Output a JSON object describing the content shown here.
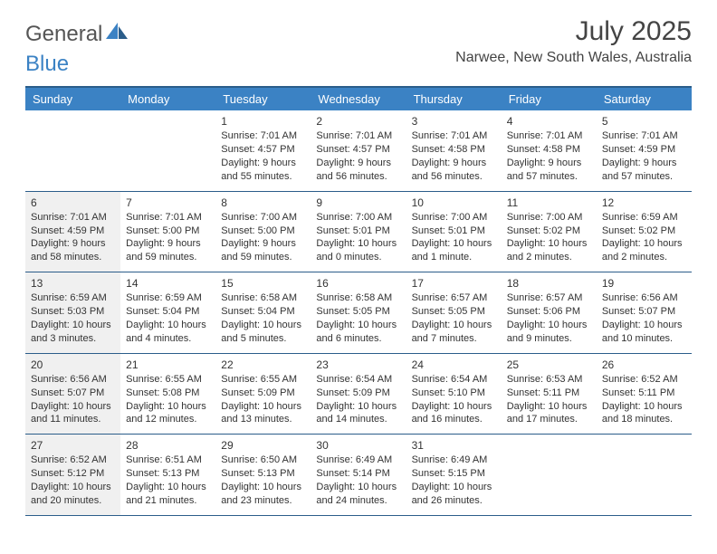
{
  "brand": {
    "part1": "General",
    "part2": "Blue"
  },
  "title": "July 2025",
  "location": "Narwee, New South Wales, Australia",
  "colors": {
    "header_bg": "#3b82c4",
    "border": "#2b5d8a",
    "shade_bg": "#f0f0f0",
    "text": "#333333",
    "header_text": "#ffffff"
  },
  "day_headers": [
    "Sunday",
    "Monday",
    "Tuesday",
    "Wednesday",
    "Thursday",
    "Friday",
    "Saturday"
  ],
  "weeks": [
    [
      {
        "day": "",
        "sunrise": "",
        "sunset": "",
        "daylight": "",
        "shade": false
      },
      {
        "day": "",
        "sunrise": "",
        "sunset": "",
        "daylight": "",
        "shade": false
      },
      {
        "day": "1",
        "sunrise": "Sunrise: 7:01 AM",
        "sunset": "Sunset: 4:57 PM",
        "daylight": "Daylight: 9 hours and 55 minutes.",
        "shade": false
      },
      {
        "day": "2",
        "sunrise": "Sunrise: 7:01 AM",
        "sunset": "Sunset: 4:57 PM",
        "daylight": "Daylight: 9 hours and 56 minutes.",
        "shade": false
      },
      {
        "day": "3",
        "sunrise": "Sunrise: 7:01 AM",
        "sunset": "Sunset: 4:58 PM",
        "daylight": "Daylight: 9 hours and 56 minutes.",
        "shade": false
      },
      {
        "day": "4",
        "sunrise": "Sunrise: 7:01 AM",
        "sunset": "Sunset: 4:58 PM",
        "daylight": "Daylight: 9 hours and 57 minutes.",
        "shade": false
      },
      {
        "day": "5",
        "sunrise": "Sunrise: 7:01 AM",
        "sunset": "Sunset: 4:59 PM",
        "daylight": "Daylight: 9 hours and 57 minutes.",
        "shade": false
      }
    ],
    [
      {
        "day": "6",
        "sunrise": "Sunrise: 7:01 AM",
        "sunset": "Sunset: 4:59 PM",
        "daylight": "Daylight: 9 hours and 58 minutes.",
        "shade": true
      },
      {
        "day": "7",
        "sunrise": "Sunrise: 7:01 AM",
        "sunset": "Sunset: 5:00 PM",
        "daylight": "Daylight: 9 hours and 59 minutes.",
        "shade": false
      },
      {
        "day": "8",
        "sunrise": "Sunrise: 7:00 AM",
        "sunset": "Sunset: 5:00 PM",
        "daylight": "Daylight: 9 hours and 59 minutes.",
        "shade": false
      },
      {
        "day": "9",
        "sunrise": "Sunrise: 7:00 AM",
        "sunset": "Sunset: 5:01 PM",
        "daylight": "Daylight: 10 hours and 0 minutes.",
        "shade": false
      },
      {
        "day": "10",
        "sunrise": "Sunrise: 7:00 AM",
        "sunset": "Sunset: 5:01 PM",
        "daylight": "Daylight: 10 hours and 1 minute.",
        "shade": false
      },
      {
        "day": "11",
        "sunrise": "Sunrise: 7:00 AM",
        "sunset": "Sunset: 5:02 PM",
        "daylight": "Daylight: 10 hours and 2 minutes.",
        "shade": false
      },
      {
        "day": "12",
        "sunrise": "Sunrise: 6:59 AM",
        "sunset": "Sunset: 5:02 PM",
        "daylight": "Daylight: 10 hours and 2 minutes.",
        "shade": false
      }
    ],
    [
      {
        "day": "13",
        "sunrise": "Sunrise: 6:59 AM",
        "sunset": "Sunset: 5:03 PM",
        "daylight": "Daylight: 10 hours and 3 minutes.",
        "shade": true
      },
      {
        "day": "14",
        "sunrise": "Sunrise: 6:59 AM",
        "sunset": "Sunset: 5:04 PM",
        "daylight": "Daylight: 10 hours and 4 minutes.",
        "shade": false
      },
      {
        "day": "15",
        "sunrise": "Sunrise: 6:58 AM",
        "sunset": "Sunset: 5:04 PM",
        "daylight": "Daylight: 10 hours and 5 minutes.",
        "shade": false
      },
      {
        "day": "16",
        "sunrise": "Sunrise: 6:58 AM",
        "sunset": "Sunset: 5:05 PM",
        "daylight": "Daylight: 10 hours and 6 minutes.",
        "shade": false
      },
      {
        "day": "17",
        "sunrise": "Sunrise: 6:57 AM",
        "sunset": "Sunset: 5:05 PM",
        "daylight": "Daylight: 10 hours and 7 minutes.",
        "shade": false
      },
      {
        "day": "18",
        "sunrise": "Sunrise: 6:57 AM",
        "sunset": "Sunset: 5:06 PM",
        "daylight": "Daylight: 10 hours and 9 minutes.",
        "shade": false
      },
      {
        "day": "19",
        "sunrise": "Sunrise: 6:56 AM",
        "sunset": "Sunset: 5:07 PM",
        "daylight": "Daylight: 10 hours and 10 minutes.",
        "shade": false
      }
    ],
    [
      {
        "day": "20",
        "sunrise": "Sunrise: 6:56 AM",
        "sunset": "Sunset: 5:07 PM",
        "daylight": "Daylight: 10 hours and 11 minutes.",
        "shade": true
      },
      {
        "day": "21",
        "sunrise": "Sunrise: 6:55 AM",
        "sunset": "Sunset: 5:08 PM",
        "daylight": "Daylight: 10 hours and 12 minutes.",
        "shade": false
      },
      {
        "day": "22",
        "sunrise": "Sunrise: 6:55 AM",
        "sunset": "Sunset: 5:09 PM",
        "daylight": "Daylight: 10 hours and 13 minutes.",
        "shade": false
      },
      {
        "day": "23",
        "sunrise": "Sunrise: 6:54 AM",
        "sunset": "Sunset: 5:09 PM",
        "daylight": "Daylight: 10 hours and 14 minutes.",
        "shade": false
      },
      {
        "day": "24",
        "sunrise": "Sunrise: 6:54 AM",
        "sunset": "Sunset: 5:10 PM",
        "daylight": "Daylight: 10 hours and 16 minutes.",
        "shade": false
      },
      {
        "day": "25",
        "sunrise": "Sunrise: 6:53 AM",
        "sunset": "Sunset: 5:11 PM",
        "daylight": "Daylight: 10 hours and 17 minutes.",
        "shade": false
      },
      {
        "day": "26",
        "sunrise": "Sunrise: 6:52 AM",
        "sunset": "Sunset: 5:11 PM",
        "daylight": "Daylight: 10 hours and 18 minutes.",
        "shade": false
      }
    ],
    [
      {
        "day": "27",
        "sunrise": "Sunrise: 6:52 AM",
        "sunset": "Sunset: 5:12 PM",
        "daylight": "Daylight: 10 hours and 20 minutes.",
        "shade": true
      },
      {
        "day": "28",
        "sunrise": "Sunrise: 6:51 AM",
        "sunset": "Sunset: 5:13 PM",
        "daylight": "Daylight: 10 hours and 21 minutes.",
        "shade": false
      },
      {
        "day": "29",
        "sunrise": "Sunrise: 6:50 AM",
        "sunset": "Sunset: 5:13 PM",
        "daylight": "Daylight: 10 hours and 23 minutes.",
        "shade": false
      },
      {
        "day": "30",
        "sunrise": "Sunrise: 6:49 AM",
        "sunset": "Sunset: 5:14 PM",
        "daylight": "Daylight: 10 hours and 24 minutes.",
        "shade": false
      },
      {
        "day": "31",
        "sunrise": "Sunrise: 6:49 AM",
        "sunset": "Sunset: 5:15 PM",
        "daylight": "Daylight: 10 hours and 26 minutes.",
        "shade": false
      },
      {
        "day": "",
        "sunrise": "",
        "sunset": "",
        "daylight": "",
        "shade": false
      },
      {
        "day": "",
        "sunrise": "",
        "sunset": "",
        "daylight": "",
        "shade": false
      }
    ]
  ]
}
